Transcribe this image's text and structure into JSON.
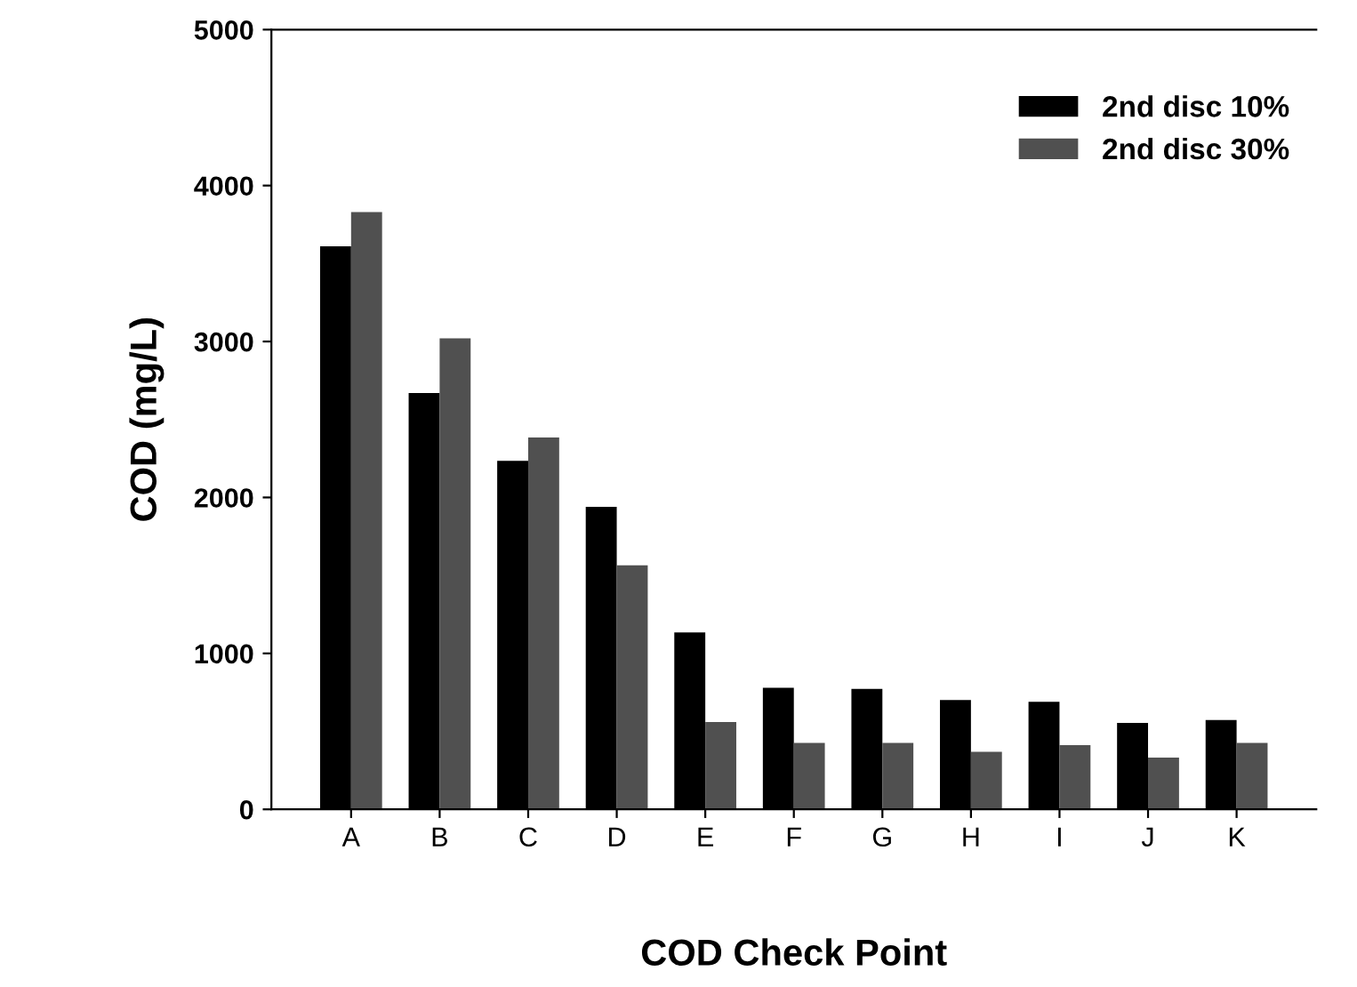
{
  "chart_data": {
    "type": "bar",
    "xlabel": "COD Check Point",
    "ylabel": "COD (mg/L)",
    "categories": [
      "A",
      "B",
      "C",
      "D",
      "E",
      "F",
      "G",
      "H",
      "I",
      "J",
      "K"
    ],
    "series": [
      {
        "name": "2nd disc 10%",
        "color": "#000000",
        "values": [
          3610,
          2670,
          2235,
          1940,
          1135,
          780,
          773,
          701,
          690,
          554,
          573
        ]
      },
      {
        "name": "2nd disc 30%",
        "color": "#505050",
        "values": [
          3830,
          3020,
          2385,
          1565,
          560,
          426,
          426,
          369,
          411,
          332,
          426
        ]
      }
    ],
    "ylim": [
      0,
      5000
    ],
    "yticks": [
      0,
      1000,
      2000,
      3000,
      4000,
      5000
    ],
    "grid": false,
    "legend": "top right"
  }
}
